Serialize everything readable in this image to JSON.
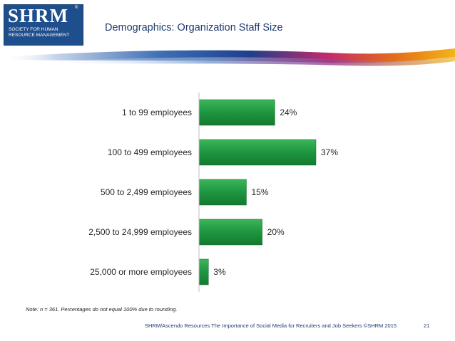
{
  "logo": {
    "letters": "SHRM",
    "registered": "®",
    "subtitle": "Society for Human Resource Management"
  },
  "title": "Demographics: Organization Staff Size",
  "colors": {
    "bar": "#1e9640",
    "bar_dark": "#137a2f",
    "title": "#1f3a6e",
    "logo": "#1f4e8c"
  },
  "chart_data": {
    "type": "bar",
    "orientation": "horizontal",
    "title": "",
    "categories": [
      "1 to 99 employees",
      "100 to 499 employees",
      "500 to 2,499 employees",
      "2,500 to 24,999 employees",
      "25,000 or more employees"
    ],
    "values": [
      24,
      37,
      15,
      20,
      3
    ],
    "value_labels": [
      "24%",
      "37%",
      "15%",
      "20%",
      "3%"
    ],
    "unit": "%",
    "xlabel": "",
    "ylabel": "",
    "xlim": [
      0,
      50
    ],
    "grid": false,
    "legend": "none"
  },
  "note": "Note: n = 361. Percentages do not equal 100% due to rounding.",
  "footer": "SHRM/Ascendo Resources The Importance of Social Media for Recruiters and Job Seekers ©SHRM 2015",
  "page_number": "21"
}
